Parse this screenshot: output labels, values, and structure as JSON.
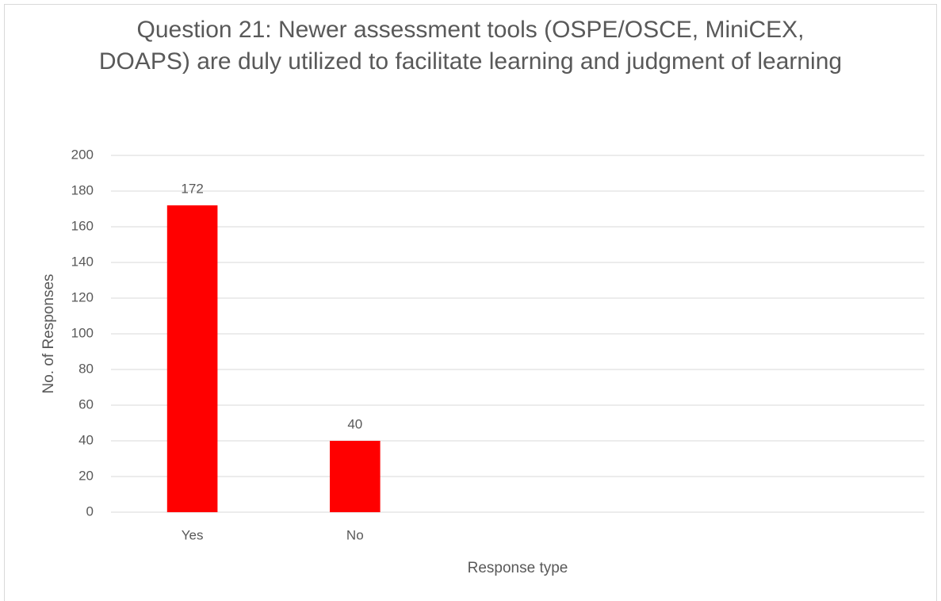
{
  "chart_data": {
    "type": "bar",
    "title": "Question 21: Newer assessment tools (OSPE/OSCE, MiniCEX, DOAPS) are duly utilized to facilitate learning and judgment of learning",
    "x_label": "Response type",
    "y_label": "No. of Responses",
    "categories": [
      "Yes",
      "No",
      null,
      null,
      null
    ],
    "values": [
      172,
      40,
      null,
      null,
      null
    ],
    "color": "#ff0000",
    "ylim": [
      0,
      200
    ],
    "yticks": [
      0,
      20,
      40,
      60,
      80,
      100,
      120,
      140,
      160,
      180,
      200
    ],
    "grid": true,
    "show_value_labels": true
  }
}
